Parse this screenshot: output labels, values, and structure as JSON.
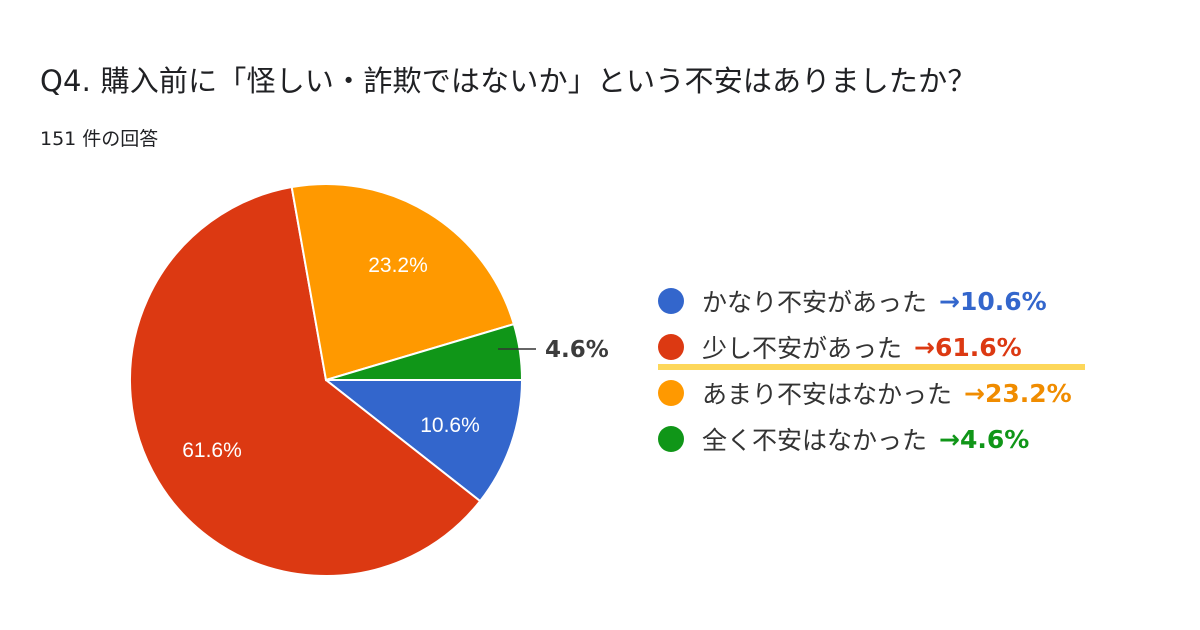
{
  "header": {
    "title": "Q4. 購入前に「怪しい・詐欺ではないか」という不安はありましたか？",
    "response_count": "151 件の回答"
  },
  "legend": {
    "items": [
      {
        "label": "かなり不安があった",
        "value": "→10.6%",
        "color": "#3366CC"
      },
      {
        "label": "少し不安があった",
        "value": "→61.6%",
        "color": "#DC3912",
        "highlighted": true
      },
      {
        "label": "あまり不安はなかった",
        "value": "→23.2%",
        "color": "#FF9900"
      },
      {
        "label": "全く不安はなかった",
        "value": "→4.6%",
        "color": "#109618"
      }
    ],
    "highlight_color": "#FDD75A"
  },
  "pie": {
    "labels": {
      "blue": "10.6%",
      "red": "61.6%",
      "orange": "23.2%",
      "green": "4.6%"
    }
  },
  "chart_data": {
    "type": "pie",
    "title": "Q4. 購入前に「怪しい・詐欺ではないか」という不安はありましたか？",
    "subtitle": "151 件の回答",
    "categories": [
      "かなり不安があった",
      "少し不安があった",
      "あまり不安はなかった",
      "全く不安はなかった"
    ],
    "values": [
      10.6,
      61.6,
      23.2,
      4.6
    ],
    "colors": [
      "#3366CC",
      "#DC3912",
      "#FF9900",
      "#109618"
    ],
    "total_responses": 151,
    "legend_position": "right",
    "start_angle": "3 o'clock, clockwise"
  }
}
